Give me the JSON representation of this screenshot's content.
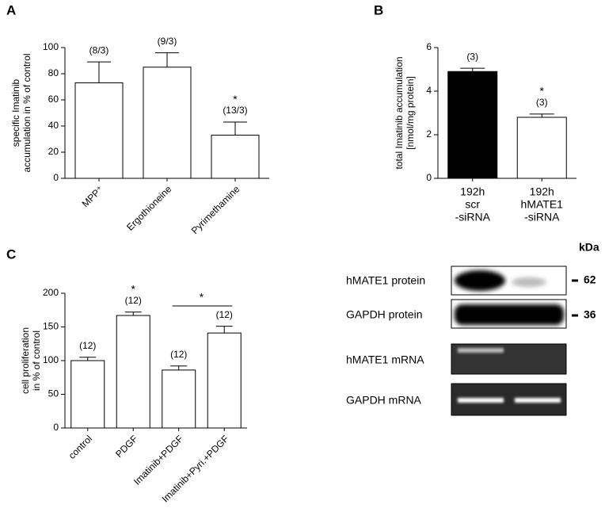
{
  "chart_data": [
    {
      "type": "bar",
      "panel": "A",
      "y_label": [
        "specific Imatinib",
        "accumulation in % of control"
      ],
      "categories": [
        [
          "MPP⁺"
        ],
        [
          "Ergothioneine"
        ],
        [
          "Pyrimethamine"
        ]
      ],
      "values": [
        73,
        85,
        33
      ],
      "errors": [
        16,
        11,
        10
      ],
      "annotations": [
        "(8/3)",
        "(9/3)",
        "(13/3)"
      ],
      "significance": [
        {
          "index": 2,
          "text": "*"
        }
      ],
      "colors": [
        "#ffffff",
        "#ffffff",
        "#ffffff"
      ],
      "ylim": [
        0,
        100
      ],
      "yticks": [
        0,
        20,
        40,
        60,
        80,
        100
      ],
      "rotate_labels": true
    },
    {
      "type": "bar",
      "panel": "B",
      "y_label": [
        "total Imatinib accumulation",
        "[nmol/mg protein]"
      ],
      "categories": [
        [
          "192h",
          "scr",
          "-siRNA"
        ],
        [
          "192h",
          "hMATE1",
          "-siRNA"
        ]
      ],
      "values": [
        4.9,
        2.8
      ],
      "errors": [
        0.15,
        0.15
      ],
      "annotations": [
        "(3)",
        "(3)"
      ],
      "significance": [
        {
          "index": 1,
          "text": "*"
        }
      ],
      "colors": [
        "#000000",
        "#ffffff"
      ],
      "ylim": [
        0,
        6
      ],
      "yticks": [
        0,
        2,
        4,
        6
      ],
      "rotate_labels": false
    },
    {
      "type": "bar",
      "panel": "C",
      "y_label": [
        "cell proliferation",
        "in % of control"
      ],
      "categories": [
        [
          "control"
        ],
        [
          "PDGF"
        ],
        [
          "Imatinib+PDGF"
        ],
        [
          "Imatinib+Pyri.+PDGF"
        ]
      ],
      "values": [
        100,
        167,
        86,
        141
      ],
      "errors": [
        5,
        5,
        6,
        10
      ],
      "annotations": [
        "(12)",
        "(12)",
        "(12)",
        "(12)"
      ],
      "significance": [
        {
          "index": 1,
          "text": "*"
        }
      ],
      "bracket": {
        "from": 2,
        "to": 3,
        "text": "*"
      },
      "colors": [
        "#ffffff",
        "#ffffff",
        "#ffffff",
        "#ffffff"
      ],
      "ylim": [
        0,
        200
      ],
      "yticks": [
        0,
        50,
        100,
        150,
        200
      ],
      "rotate_labels": true
    }
  ],
  "blot": {
    "unit": "kDa",
    "rows": [
      {
        "label": "hMATE1 protein",
        "marker": 62
      },
      {
        "label": "GAPDH protein",
        "marker": 36
      },
      {
        "label": "hMATE1 mRNA"
      },
      {
        "label": "GAPDH mRNA"
      }
    ]
  }
}
